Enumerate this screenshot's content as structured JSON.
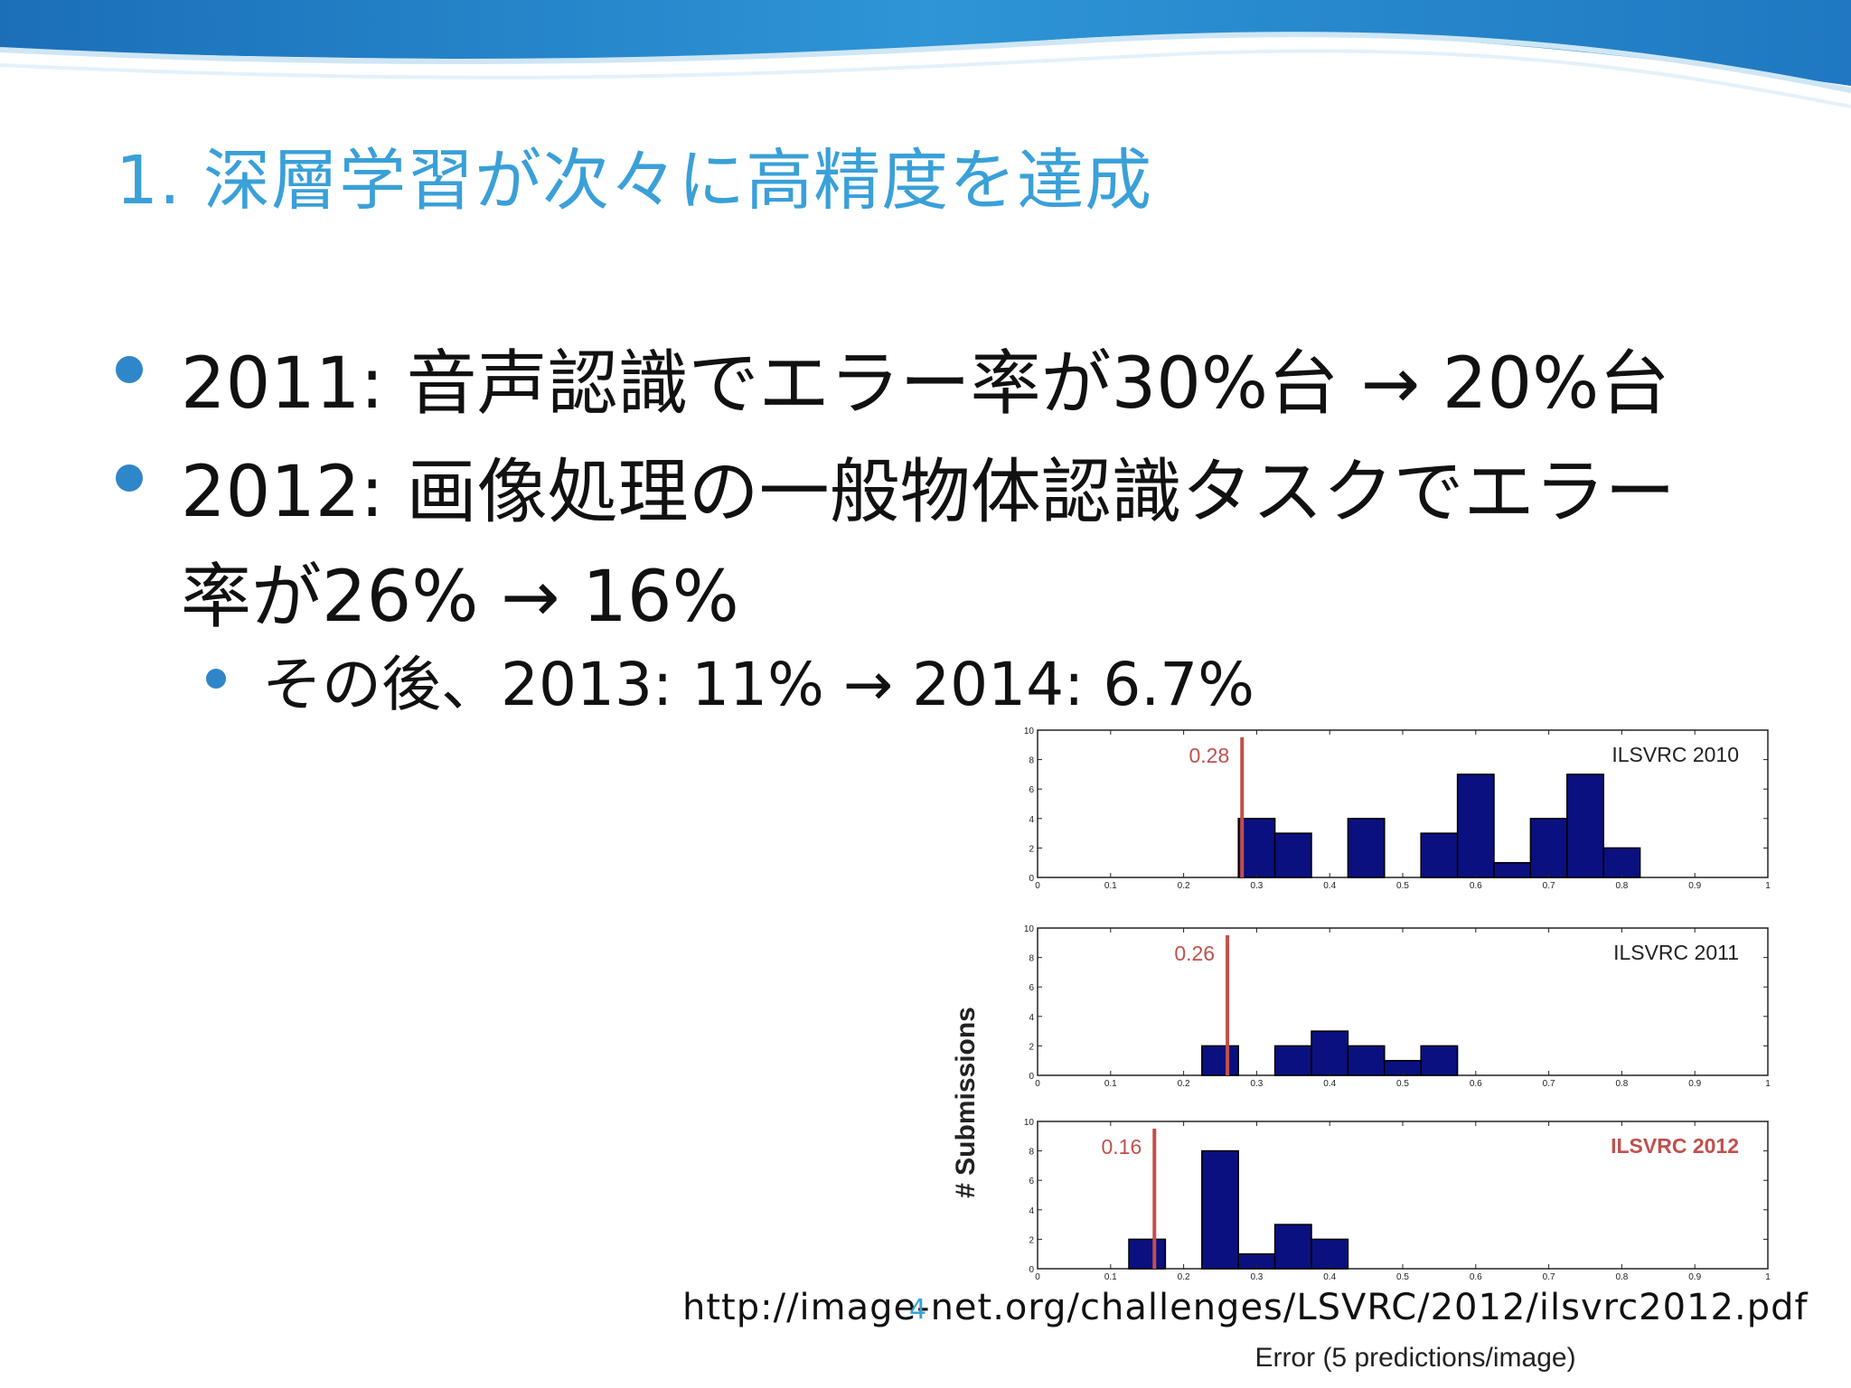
{
  "slide": {
    "title": "1. 深層学習が次々に高精度を達成",
    "bullets": [
      "2011: 音声認識でエラー率が30%台 → 20%台",
      "2012: 画像処理の一般物体認識タスクでエラー",
      "率が26% → 16%"
    ],
    "sub_bullet": "その後、2013: 11% → 2014: 6.7%",
    "source_url": "http://image-net.org/challenges/LSVRC/2012/ilsvrc2012.pdf",
    "page_number": "4",
    "colors": {
      "title": "#3aa0d8",
      "bullet_dot": "#2f86c9",
      "bar": "#0a1080",
      "marker": "#c0504d",
      "highlight_label": "#c0504d"
    }
  },
  "chart_data": {
    "type": "bar",
    "ylabel": "# Submissions",
    "xlabel": "Error (5 predictions/image)",
    "xlim": [
      0,
      1
    ],
    "ylim": [
      0,
      10
    ],
    "x_ticks": [
      "0",
      "0.1",
      "0.2",
      "0.3",
      "0.4",
      "0.5",
      "0.6",
      "0.7",
      "0.8",
      "0.9",
      "1"
    ],
    "y_ticks": [
      "0",
      "2",
      "4",
      "6",
      "8",
      "10"
    ],
    "bin_width": 0.05,
    "panels": [
      {
        "name": "ILSVRC 2010",
        "marker": 0.28,
        "marker_label": "0.28",
        "highlight": false,
        "bins": [
          [
            0.275,
            4
          ],
          [
            0.325,
            3
          ],
          [
            0.425,
            4
          ],
          [
            0.525,
            3
          ],
          [
            0.575,
            7
          ],
          [
            0.625,
            1
          ],
          [
            0.675,
            4
          ],
          [
            0.725,
            7
          ],
          [
            0.775,
            2
          ]
        ]
      },
      {
        "name": "ILSVRC 2011",
        "marker": 0.26,
        "marker_label": "0.26",
        "highlight": false,
        "bins": [
          [
            0.225,
            2
          ],
          [
            0.325,
            2
          ],
          [
            0.375,
            3
          ],
          [
            0.425,
            2
          ],
          [
            0.475,
            1
          ],
          [
            0.525,
            2
          ]
        ]
      },
      {
        "name": "ILSVRC 2012",
        "marker": 0.16,
        "marker_label": "0.16",
        "highlight": true,
        "bins": [
          [
            0.125,
            2
          ],
          [
            0.225,
            8
          ],
          [
            0.275,
            1
          ],
          [
            0.325,
            3
          ],
          [
            0.375,
            2
          ]
        ]
      }
    ]
  }
}
